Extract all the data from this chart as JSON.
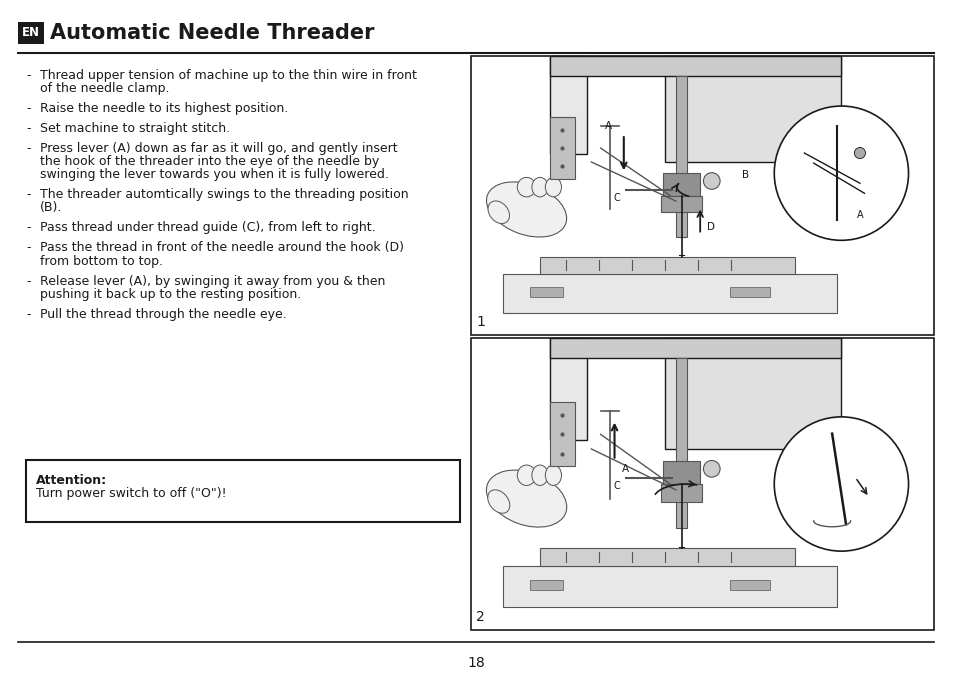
{
  "title": "Automatic Needle Threader",
  "en_label": "EN",
  "bg_color": "#ffffff",
  "text_color": "#1a1a1a",
  "title_fontsize": 15,
  "body_fontsize": 9.0,
  "page_number": "18",
  "bullet_items": [
    [
      "Thread upper tension of machine up to the thin wire in front",
      "of the needle clamp."
    ],
    [
      "Raise the needle to its highest position."
    ],
    [
      "Set machine to straight stitch."
    ],
    [
      "Press lever (A) down as far as it will go, and gently insert",
      "the hook of the threader into the eye of the needle by",
      "swinging the lever towards you when it is fully lowered."
    ],
    [
      "The threader automtically swings to the threading position",
      "(B)."
    ],
    [
      "Pass thread under thread guide (C), from left to right."
    ],
    [
      "Pass the thread in front of the needle around the hook (D)",
      "from bottom to top."
    ],
    [
      "Release lever (A), by swinging it away from you & then",
      "pushing it back up to the resting position."
    ],
    [
      "Pull the thread through the needle eye."
    ]
  ],
  "attention_title": "Attention:",
  "attention_text": "Turn power switch to off (\"O\")!",
  "divider_color": "#1a1a1a",
  "attention_border_color": "#1a1a1a",
  "lc": "#1a1a1a",
  "lc2": "#555555",
  "lc3": "#888888"
}
